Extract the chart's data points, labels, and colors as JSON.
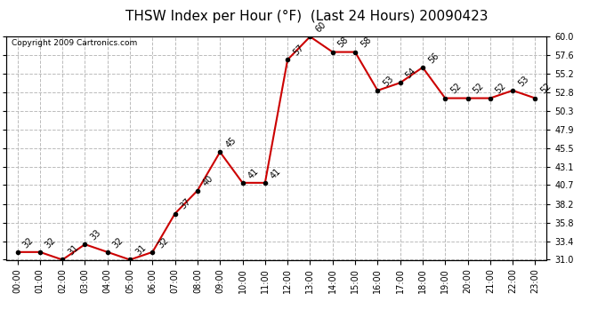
{
  "title": "THSW Index per Hour (°F)  (Last 24 Hours) 20090423",
  "copyright": "Copyright 2009 Cartronics.com",
  "hours": [
    "00:00",
    "01:00",
    "02:00",
    "03:00",
    "04:00",
    "05:00",
    "06:00",
    "07:00",
    "08:00",
    "09:00",
    "10:00",
    "11:00",
    "12:00",
    "13:00",
    "14:00",
    "15:00",
    "16:00",
    "17:00",
    "18:00",
    "19:00",
    "20:00",
    "21:00",
    "22:00",
    "23:00"
  ],
  "values": [
    32,
    32,
    31,
    33,
    32,
    31,
    32,
    37,
    40,
    45,
    41,
    41,
    57,
    60,
    58,
    58,
    53,
    54,
    56,
    52,
    52,
    52,
    53,
    52
  ],
  "ylim_min": 31.0,
  "ylim_max": 60.0,
  "yticks": [
    31.0,
    33.4,
    35.8,
    38.2,
    40.7,
    43.1,
    45.5,
    47.9,
    50.3,
    52.8,
    55.2,
    57.6,
    60.0
  ],
  "line_color": "#cc0000",
  "marker_color": "#000000",
  "bg_color": "#ffffff",
  "grid_color": "#bbbbbb",
  "title_fontsize": 11,
  "label_fontsize": 7,
  "tick_fontsize": 7,
  "copyright_fontsize": 6.5
}
